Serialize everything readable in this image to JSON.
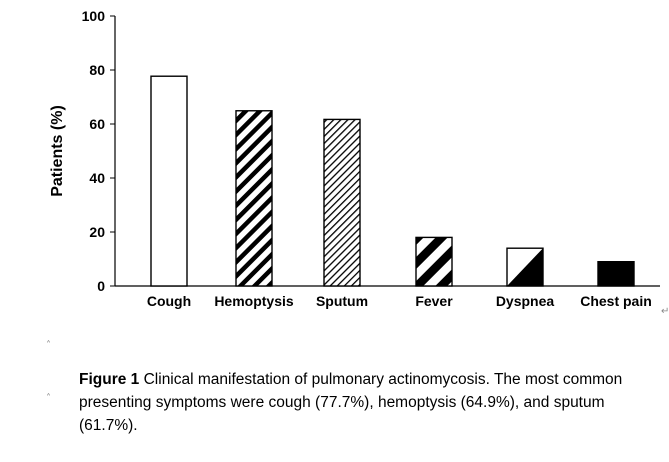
{
  "chart_data": {
    "type": "bar",
    "ylabel": "Patients (%)",
    "xlabel": "",
    "ylim": [
      0,
      100
    ],
    "yticks": [
      0,
      20,
      40,
      60,
      80,
      100
    ],
    "grid": false,
    "categories": [
      "Cough",
      "Hemoptysis",
      "Sputum",
      "Fever",
      "Dyspnea",
      "Chest pain"
    ],
    "values": [
      77.7,
      64.9,
      61.7,
      18,
      14,
      9
    ],
    "fills": [
      "white",
      "wide-diagonal-hatch",
      "fine-diagonal-hatch",
      "bold-diagonal-stripes",
      "half-black-diagonal",
      "solid-black"
    ]
  },
  "caption": {
    "label": "Figure 1",
    "text": "Clinical manifestation of pulmonary actinomycosis. The most common presenting symptoms were cough (77.7%), hemoptysis (64.9%), and sputum (61.7%)."
  }
}
